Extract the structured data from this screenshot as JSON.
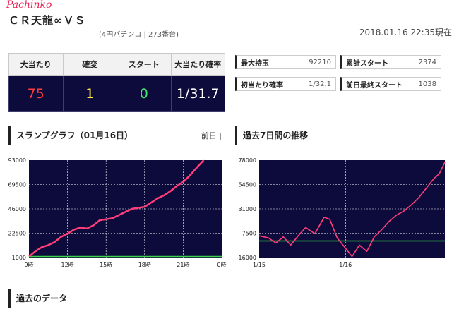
{
  "header": {
    "brand": "Pachinko",
    "machine_name": "ＣＲ天龍∞ＶＳ",
    "sub_info": "(4円パチンコ | 273番台)",
    "updated": "2018.01.16 22:35現在"
  },
  "stats": {
    "headers": [
      "大当たり",
      "確変",
      "スタート",
      "大当たり確率"
    ],
    "values": [
      "75",
      "1",
      "0",
      "1/31.7"
    ],
    "colors": [
      "#ff3c3c",
      "#ffe840",
      "#3fe86a",
      "#ffffff"
    ]
  },
  "info": [
    {
      "label": "最大持玉",
      "value": "92210"
    },
    {
      "label": "累計スタート",
      "value": "2374"
    },
    {
      "label": "初当たり確率",
      "value": "1/32.1"
    },
    {
      "label": "前日最終スタート",
      "value": "1038"
    }
  ],
  "slump": {
    "title": "スランプグラフ（01月16日）",
    "prev_label": "前日 |"
  },
  "weekly": {
    "title": "過去7日間の推移"
  },
  "past": {
    "title": "過去のデータ"
  },
  "chart_data": [
    {
      "type": "line",
      "ylim": [
        -1000,
        93000
      ],
      "yticks": [
        "93000",
        "69500",
        "46000",
        "22500",
        "-1000"
      ],
      "xticks": [
        "9時",
        "12時",
        "15時",
        "18時",
        "21時",
        "0時"
      ],
      "x": [
        9,
        9.5,
        10,
        10.5,
        11,
        11.5,
        12,
        12.5,
        13,
        13.5,
        14,
        14.5,
        15,
        15.5,
        16,
        16.5,
        17,
        17.5,
        18,
        18.5,
        19,
        19.5,
        20,
        20.5,
        21,
        21.5,
        22,
        22.6
      ],
      "values": [
        0,
        5000,
        9000,
        11000,
        14000,
        19000,
        22000,
        26000,
        28000,
        27000,
        30000,
        35000,
        36000,
        37000,
        40000,
        43000,
        46000,
        47000,
        48000,
        52000,
        56000,
        59000,
        63000,
        68000,
        72000,
        78000,
        85000,
        93000
      ],
      "line_color": "#ff3d78",
      "baseline_color": "#3ed14a"
    },
    {
      "type": "line",
      "ylim": [
        -16000,
        78000
      ],
      "yticks": [
        "78000",
        "54500",
        "31000",
        "7500",
        "-16000"
      ],
      "xticks": [
        "1/15",
        "1/16"
      ],
      "x": [
        0,
        0.05,
        0.09,
        0.13,
        0.17,
        0.21,
        0.25,
        0.3,
        0.35,
        0.38,
        0.42,
        0.46,
        0.5,
        0.54,
        0.58,
        0.62,
        0.66,
        0.7,
        0.74,
        0.78,
        0.82,
        0.86,
        0.9,
        0.94,
        0.97,
        1.0
      ],
      "values": [
        5000,
        3000,
        -2000,
        4000,
        -4000,
        5000,
        13000,
        7000,
        23000,
        21000,
        3000,
        -6000,
        -15000,
        -4000,
        -10000,
        4000,
        11000,
        19000,
        25000,
        29000,
        35000,
        42000,
        51000,
        60000,
        65000,
        76000
      ],
      "line_color": "#ff3d78",
      "baseline_color": "#3ed14a"
    }
  ]
}
